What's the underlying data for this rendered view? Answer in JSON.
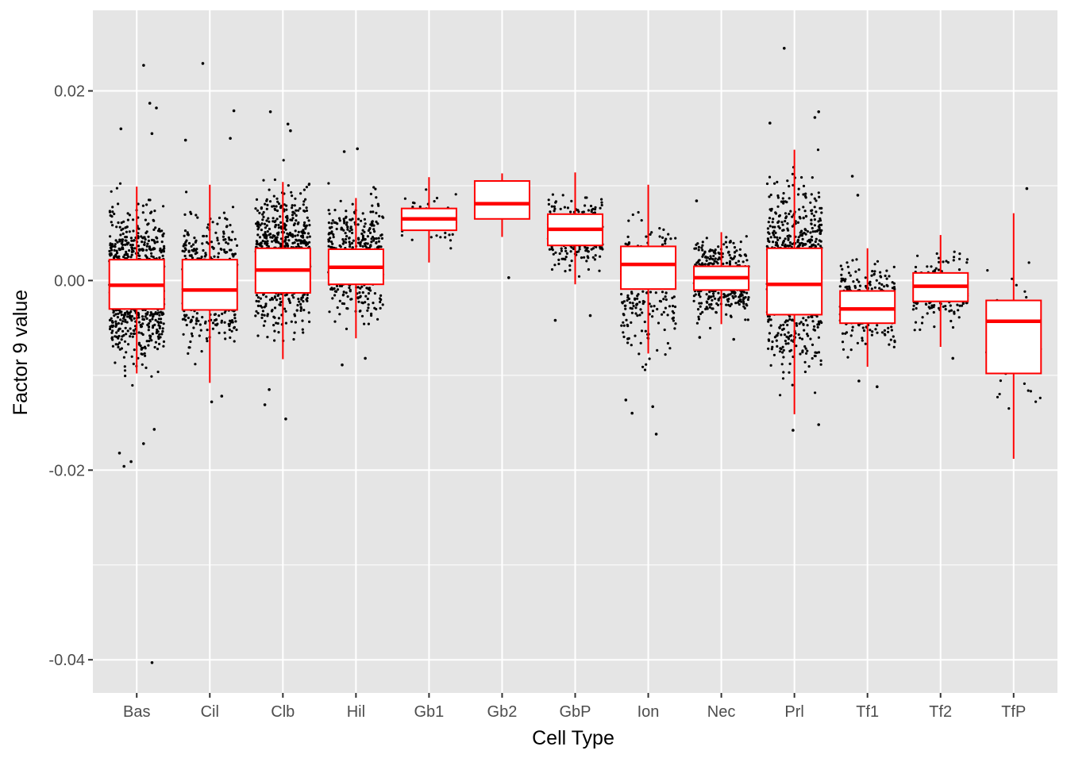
{
  "chart_data": {
    "type": "box",
    "xlabel": "Cell Type",
    "ylabel": "Factor 9 value",
    "ylim": [
      -0.0435,
      0.0285
    ],
    "y_ticks": [
      0.02,
      0.0,
      -0.02,
      -0.04
    ],
    "y_tick_labels": [
      "0.02",
      "0.00",
      "-0.02",
      "-0.04"
    ],
    "grid": true,
    "legend": "none",
    "box_color": "#ff0000",
    "point_color": "#000000",
    "panel_color": "#e5e5e5",
    "categories": [
      "Bas",
      "Cil",
      "Clb",
      "Hil",
      "Gb1",
      "Gb2",
      "GbP",
      "Ion",
      "Nec",
      "Prl",
      "Tf1",
      "Tf2",
      "TfP"
    ],
    "boxes": [
      {
        "category": "Bas",
        "whisker_low": -0.0098,
        "q1": -0.003,
        "median": -0.0005,
        "q3": 0.0022,
        "whisker_high": 0.0099
      },
      {
        "category": "Cil",
        "whisker_low": -0.0108,
        "q1": -0.0031,
        "median": -0.001,
        "q3": 0.0022,
        "whisker_high": 0.0101
      },
      {
        "category": "Clb",
        "whisker_low": -0.0083,
        "q1": -0.0013,
        "median": 0.0011,
        "q3": 0.0034,
        "whisker_high": 0.0104
      },
      {
        "category": "Hil",
        "whisker_low": -0.0061,
        "q1": -0.0004,
        "median": 0.0014,
        "q3": 0.0033,
        "whisker_high": 0.0087
      },
      {
        "category": "Gb1",
        "whisker_low": 0.0019,
        "q1": 0.0053,
        "median": 0.0065,
        "q3": 0.0076,
        "whisker_high": 0.0109
      },
      {
        "category": "Gb2",
        "whisker_low": 0.0046,
        "q1": 0.0065,
        "median": 0.0081,
        "q3": 0.0105,
        "whisker_high": 0.0113
      },
      {
        "category": "GbP",
        "whisker_low": -0.0004,
        "q1": 0.0037,
        "median": 0.0054,
        "q3": 0.007,
        "whisker_high": 0.0114
      },
      {
        "category": "Ion",
        "whisker_low": -0.0077,
        "q1": -0.0009,
        "median": 0.0017,
        "q3": 0.0036,
        "whisker_high": 0.0101
      },
      {
        "category": "Nec",
        "whisker_low": -0.0046,
        "q1": -0.001,
        "median": 0.0003,
        "q3": 0.0015,
        "whisker_high": 0.0051
      },
      {
        "category": "Prl",
        "whisker_low": -0.0141,
        "q1": -0.0036,
        "median": -0.0004,
        "q3": 0.0034,
        "whisker_high": 0.0138
      },
      {
        "category": "Tf1",
        "whisker_low": -0.0091,
        "q1": -0.0045,
        "median": -0.003,
        "q3": -0.0011,
        "whisker_high": 0.0034
      },
      {
        "category": "Tf2",
        "whisker_low": -0.007,
        "q1": -0.0022,
        "median": -0.0006,
        "q3": 0.0008,
        "whisker_high": 0.0048
      },
      {
        "category": "TfP",
        "whisker_low": -0.0188,
        "q1": -0.0098,
        "median": -0.0043,
        "q3": -0.0021,
        "whisker_high": 0.0071
      }
    ],
    "jitter_points": [
      {
        "category": "Bas",
        "y_range": [
          -0.0125,
          0.0115
        ],
        "count": 900
      },
      {
        "category": "Cil",
        "y_range": [
          -0.0105,
          0.0105
        ],
        "count": 450
      },
      {
        "category": "Clb",
        "y_range": [
          -0.009,
          0.0135
        ],
        "count": 750
      },
      {
        "category": "Hil",
        "y_range": [
          -0.007,
          0.0115
        ],
        "count": 500
      },
      {
        "category": "Gb1",
        "y_range": [
          0.002,
          0.011
        ],
        "count": 60
      },
      {
        "category": "Gb2",
        "y_range": [
          0.005,
          0.0112
        ],
        "count": 6
      },
      {
        "category": "GbP",
        "y_range": [
          -0.001,
          0.0112
        ],
        "count": 260
      },
      {
        "category": "Ion",
        "y_range": [
          -0.0122,
          0.0105
        ],
        "count": 220
      },
      {
        "category": "Nec",
        "y_range": [
          -0.0058,
          0.0065
        ],
        "count": 420
      },
      {
        "category": "Prl",
        "y_range": [
          -0.015,
          0.0165
        ],
        "count": 750
      },
      {
        "category": "Tf1",
        "y_range": [
          -0.0095,
          0.0045
        ],
        "count": 260
      },
      {
        "category": "Tf2",
        "y_range": [
          -0.007,
          0.0048
        ],
        "count": 180
      },
      {
        "category": "TfP",
        "y_range": [
          -0.0172,
          0.0055
        ],
        "count": 60
      }
    ],
    "outliers": [
      {
        "category": "Bas",
        "values": [
          0.0227,
          0.0187,
          0.0182,
          0.016,
          0.0155,
          -0.0157,
          -0.0172,
          -0.0182,
          -0.0191,
          -0.0196,
          -0.0403
        ]
      },
      {
        "category": "Cil",
        "values": [
          0.0229,
          0.0179,
          0.015,
          0.0148,
          -0.0122,
          -0.0128
        ]
      },
      {
        "category": "Clb",
        "values": [
          0.0178,
          0.0165,
          0.0158,
          -0.0115,
          -0.0131,
          -0.0146
        ]
      },
      {
        "category": "Hil",
        "values": [
          0.0139,
          0.0136,
          -0.0082,
          -0.0089
        ]
      },
      {
        "category": "Gb2",
        "values": [
          0.0003
        ]
      },
      {
        "category": "GbP",
        "values": [
          -0.0037,
          -0.0042
        ]
      },
      {
        "category": "Ion",
        "values": [
          -0.0126,
          -0.0133,
          -0.014,
          -0.0162
        ]
      },
      {
        "category": "Nec",
        "values": [
          0.0084,
          -0.006,
          -0.0062
        ]
      },
      {
        "category": "Prl",
        "values": [
          0.0245,
          0.0178,
          0.0172,
          0.0166,
          -0.0152,
          -0.0158
        ]
      },
      {
        "category": "Tf1",
        "values": [
          0.011,
          0.009,
          -0.0106,
          -0.0112
        ]
      },
      {
        "category": "Tf2",
        "values": [
          -0.0082
        ]
      },
      {
        "category": "TfP",
        "values": [
          0.0097
        ]
      }
    ]
  }
}
